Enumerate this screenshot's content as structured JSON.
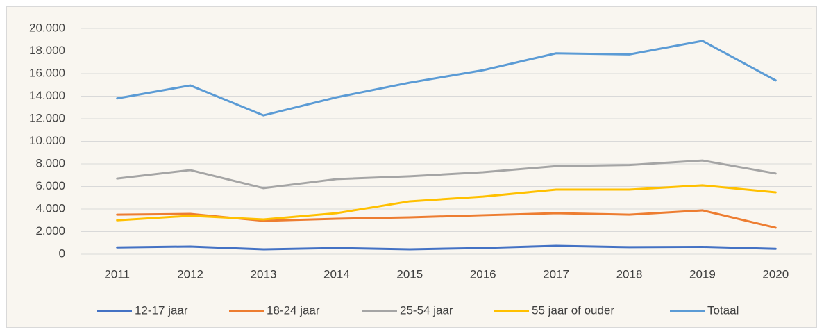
{
  "chart_data": {
    "type": "line",
    "categories": [
      "2011",
      "2012",
      "2013",
      "2014",
      "2015",
      "2016",
      "2017",
      "2018",
      "2019",
      "2020"
    ],
    "series": [
      {
        "name": "12-17 jaar",
        "color": "#4472c4",
        "values": [
          600,
          680,
          430,
          550,
          430,
          550,
          740,
          620,
          650,
          480
        ]
      },
      {
        "name": "18-24 jaar",
        "color": "#ed7d31",
        "values": [
          3500,
          3570,
          2950,
          3140,
          3260,
          3450,
          3630,
          3500,
          3880,
          2340
        ]
      },
      {
        "name": "25-54 jaar",
        "color": "#a5a5a5",
        "values": [
          6700,
          7450,
          5850,
          6650,
          6900,
          7260,
          7800,
          7900,
          8300,
          7150
        ]
      },
      {
        "name": "55 jaar of ouder",
        "color": "#ffc000",
        "values": [
          3000,
          3400,
          3080,
          3630,
          4680,
          5100,
          5720,
          5720,
          6100,
          5480
        ]
      },
      {
        "name": "Totaal",
        "color": "#5b9bd5",
        "values": [
          13800,
          14950,
          12300,
          13900,
          15200,
          16300,
          17800,
          17700,
          18900,
          15400
        ]
      }
    ],
    "ylim": [
      0,
      20000
    ],
    "yticks": [
      0,
      {
        "value": 2000,
        "label": "2.000"
      },
      {
        "value": 4000,
        "label": "4.000"
      },
      {
        "value": 6000,
        "label": "6.000"
      },
      {
        "value": 8000,
        "label": "8.000"
      },
      {
        "value": 10000,
        "label": "10.000"
      },
      {
        "value": 12000,
        "label": "12.000"
      },
      {
        "value": 14000,
        "label": "14.000"
      },
      {
        "value": 16000,
        "label": "16.000"
      },
      {
        "value": 18000,
        "label": "18.000"
      },
      {
        "value": 20000,
        "label": "20.000"
      }
    ],
    "grid": true,
    "legend": "bottom"
  }
}
